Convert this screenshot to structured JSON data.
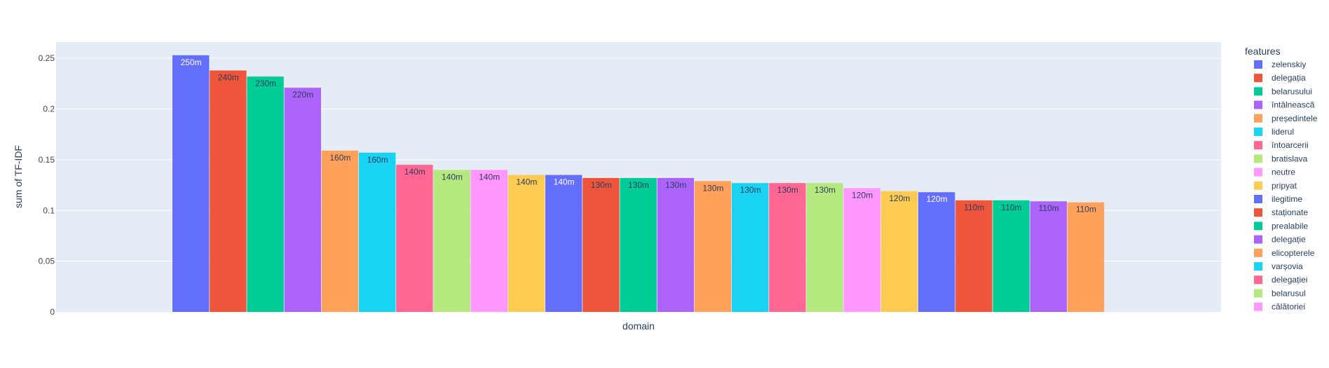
{
  "chart_data": {
    "type": "bar",
    "xlabel": "domain",
    "ylabel": "sum of TF-IDF",
    "ylim": [
      0,
      0.266
    ],
    "yticks": [
      0,
      0.05,
      0.1,
      0.15,
      0.2,
      0.25
    ],
    "ytick_labels": [
      "0",
      "0.05",
      "0.1",
      "0.15",
      "0.2",
      "0.25"
    ],
    "grid": true,
    "legend_title": "features",
    "legend_position": "right",
    "series": [
      {
        "name": "zelenskiy",
        "value": 0.253,
        "label": "250m",
        "color": "#636efa"
      },
      {
        "name": "delegația",
        "value": 0.238,
        "label": "240m",
        "color": "#EF553B"
      },
      {
        "name": "belarusului",
        "value": 0.232,
        "label": "230m",
        "color": "#00cc96"
      },
      {
        "name": "întâlnească",
        "value": 0.221,
        "label": "220m",
        "color": "#ab63fa"
      },
      {
        "name": "președintele",
        "value": 0.159,
        "label": "160m",
        "color": "#FFA15A"
      },
      {
        "name": "liderul",
        "value": 0.157,
        "label": "160m",
        "color": "#19d3f3"
      },
      {
        "name": "întoarcerii",
        "value": 0.145,
        "label": "140m",
        "color": "#FF6692"
      },
      {
        "name": "bratislava",
        "value": 0.14,
        "label": "140m",
        "color": "#B6E880"
      },
      {
        "name": "neutre",
        "value": 0.14,
        "label": "140m",
        "color": "#FF97FF"
      },
      {
        "name": "pripyat",
        "value": 0.135,
        "label": "140m",
        "color": "#FECB52"
      },
      {
        "name": "ilegitime",
        "value": 0.135,
        "label": "140m",
        "color": "#636efa"
      },
      {
        "name": "staționate",
        "value": 0.132,
        "label": "130m",
        "color": "#EF553B"
      },
      {
        "name": "prealabile",
        "value": 0.132,
        "label": "130m",
        "color": "#00cc96"
      },
      {
        "name": "delegație",
        "value": 0.132,
        "label": "130m",
        "color": "#ab63fa"
      },
      {
        "name": "elicopterele",
        "value": 0.129,
        "label": "130m",
        "color": "#FFA15A"
      },
      {
        "name": "varșovia",
        "value": 0.127,
        "label": "130m",
        "color": "#19d3f3"
      },
      {
        "name": "delegației",
        "value": 0.127,
        "label": "130m",
        "color": "#FF6692"
      },
      {
        "name": "belarusul",
        "value": 0.127,
        "label": "130m",
        "color": "#B6E880"
      },
      {
        "name": "călătoriei",
        "value": 0.122,
        "label": "120m",
        "color": "#FF97FF"
      },
      {
        "name": "",
        "value": 0.119,
        "label": "120m",
        "color": "#FECB52"
      },
      {
        "name": "",
        "value": 0.118,
        "label": "120m",
        "color": "#636efa"
      },
      {
        "name": "",
        "value": 0.11,
        "label": "110m",
        "color": "#EF553B"
      },
      {
        "name": "",
        "value": 0.11,
        "label": "110m",
        "color": "#00cc96"
      },
      {
        "name": "",
        "value": 0.109,
        "label": "110m",
        "color": "#ab63fa"
      },
      {
        "name": "",
        "value": 0.108,
        "label": "110m",
        "color": "#FFA15A"
      }
    ],
    "legend_visible_count": 19
  }
}
